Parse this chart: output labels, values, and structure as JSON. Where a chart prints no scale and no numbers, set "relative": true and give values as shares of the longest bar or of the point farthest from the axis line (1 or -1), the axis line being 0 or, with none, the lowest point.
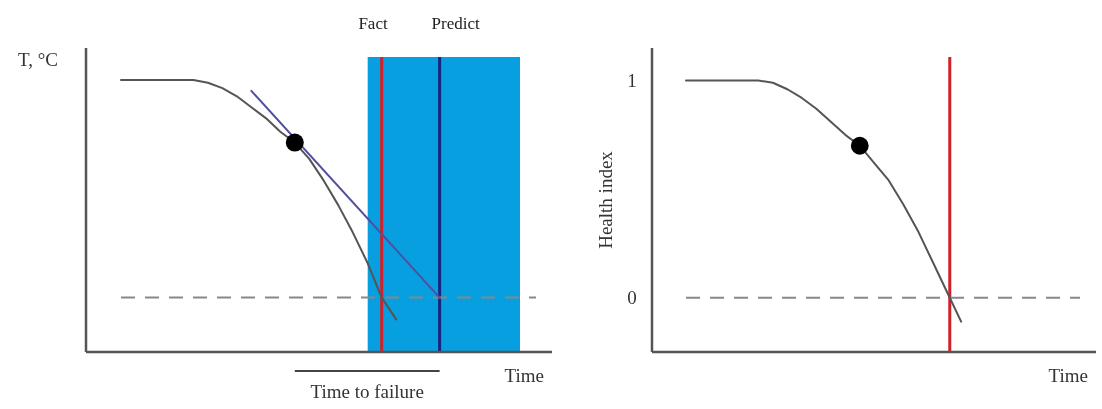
{
  "chart_data": [
    {
      "type": "line",
      "relative": true,
      "ylabel": "T, °C",
      "xlabel": "Time",
      "tick_labels": false,
      "categories": [
        null,
        null,
        null,
        null,
        null,
        null,
        null,
        null,
        null,
        null,
        null,
        null,
        null,
        null,
        null,
        null,
        null,
        null,
        null,
        null,
        null,
        null,
        null,
        null,
        null,
        null,
        null,
        null,
        null,
        null
      ],
      "series": [
        {
          "color": "#555555",
          "values": [
            1,
            1,
            1,
            1,
            1,
            1,
            0.99,
            0.97,
            0.94,
            0.9,
            0.86,
            0.81,
            0.77,
            0.71,
            0.63,
            0.54,
            0.44,
            0.33,
            0.2,
            0.12,
            null,
            null,
            null,
            null,
            null,
            null,
            null,
            null,
            null,
            null
          ]
        },
        {
          "color": "#5050a0",
          "values": [
            null,
            null,
            null,
            null,
            null,
            null,
            null,
            null,
            null,
            0.96,
            null,
            null,
            null,
            null,
            null,
            null,
            null,
            null,
            null,
            null,
            null,
            null,
            0.2,
            null,
            null,
            null,
            null,
            null,
            null,
            null
          ]
        }
      ],
      "ref_lines": [
        {
          "axis": "y",
          "value": 0.2,
          "color": "#888888",
          "line_style": "dashed"
        }
      ],
      "annotations": [
        "Fact",
        "Predict",
        "Time to failure"
      ]
    },
    {
      "type": "line",
      "ylabel": "Health index",
      "xlabel": "Time",
      "tick_labels": "y",
      "ylim": [
        -0.25,
        1.15
      ],
      "yticks": [
        0,
        1
      ],
      "categories": [
        null,
        null,
        null,
        null,
        null,
        null,
        null,
        null,
        null,
        null,
        null,
        null,
        null,
        null,
        null,
        null,
        null,
        null,
        null,
        null,
        null,
        null,
        null,
        null,
        null,
        null,
        null,
        null
      ],
      "series": [
        {
          "color": "#555555",
          "values": [
            1,
            1,
            1,
            1,
            1,
            1,
            0.99,
            0.96,
            0.92,
            0.87,
            0.81,
            0.75,
            0.7,
            0.62,
            0.54,
            0.43,
            0.31,
            0.17,
            0.03,
            -0.11,
            null,
            null,
            null,
            null,
            null,
            null,
            null,
            null
          ]
        },
        {
          "type": "scatter",
          "color": "#000000",
          "marker": "circle",
          "values": [
            null,
            null,
            null,
            null,
            null,
            null,
            null,
            null,
            null,
            null,
            null,
            null,
            0.7,
            null,
            null,
            null,
            null,
            null,
            null,
            null,
            null,
            null,
            null,
            null,
            null,
            null,
            null,
            null
          ]
        }
      ],
      "ref_lines": [
        {
          "axis": "y",
          "value": 0,
          "color": "#888888",
          "line_style": "dashed"
        }
      ]
    }
  ]
}
